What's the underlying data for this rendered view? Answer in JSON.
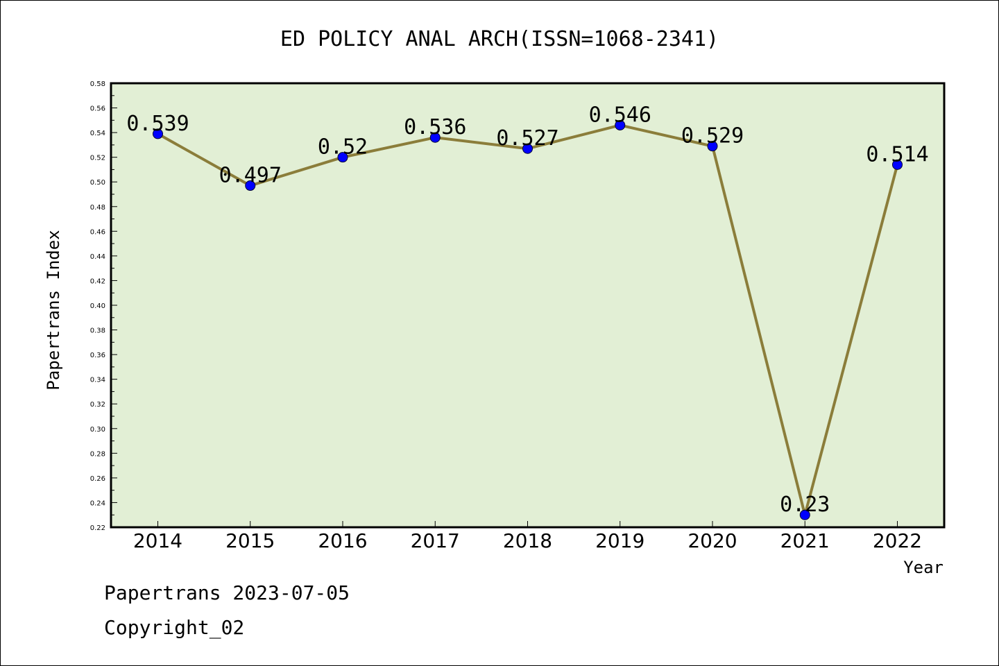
{
  "footer": {
    "line1": "Papertrans 2023-07-05",
    "line2": "Copyright_02"
  },
  "chart_data": {
    "type": "line",
    "title": "ED POLICY ANAL ARCH(ISSN=1068-2341)",
    "xlabel": "Year",
    "ylabel": "Papertrans Index",
    "categories": [
      "2014",
      "2015",
      "2016",
      "2017",
      "2018",
      "2019",
      "2020",
      "2021",
      "2022"
    ],
    "values": [
      0.539,
      0.497,
      0.52,
      0.536,
      0.527,
      0.546,
      0.529,
      0.23,
      0.514
    ],
    "data_labels": [
      "0.539",
      "0.497",
      "0.52",
      "0.536",
      "0.527",
      "0.546",
      "0.529",
      "0.23",
      "0.514"
    ],
    "ylim": [
      0.22,
      0.58
    ],
    "yticks": [
      "0.22",
      "0.24",
      "0.26",
      "0.28",
      "0.30",
      "0.32",
      "0.34",
      "0.36",
      "0.38",
      "0.40",
      "0.42",
      "0.44",
      "0.46",
      "0.48",
      "0.50",
      "0.52",
      "0.54",
      "0.56",
      "0.58"
    ],
    "grid": false,
    "colors": {
      "plot_bg": "#e2efd5",
      "line": "#8b7d3a",
      "marker": "#0000ff"
    }
  }
}
